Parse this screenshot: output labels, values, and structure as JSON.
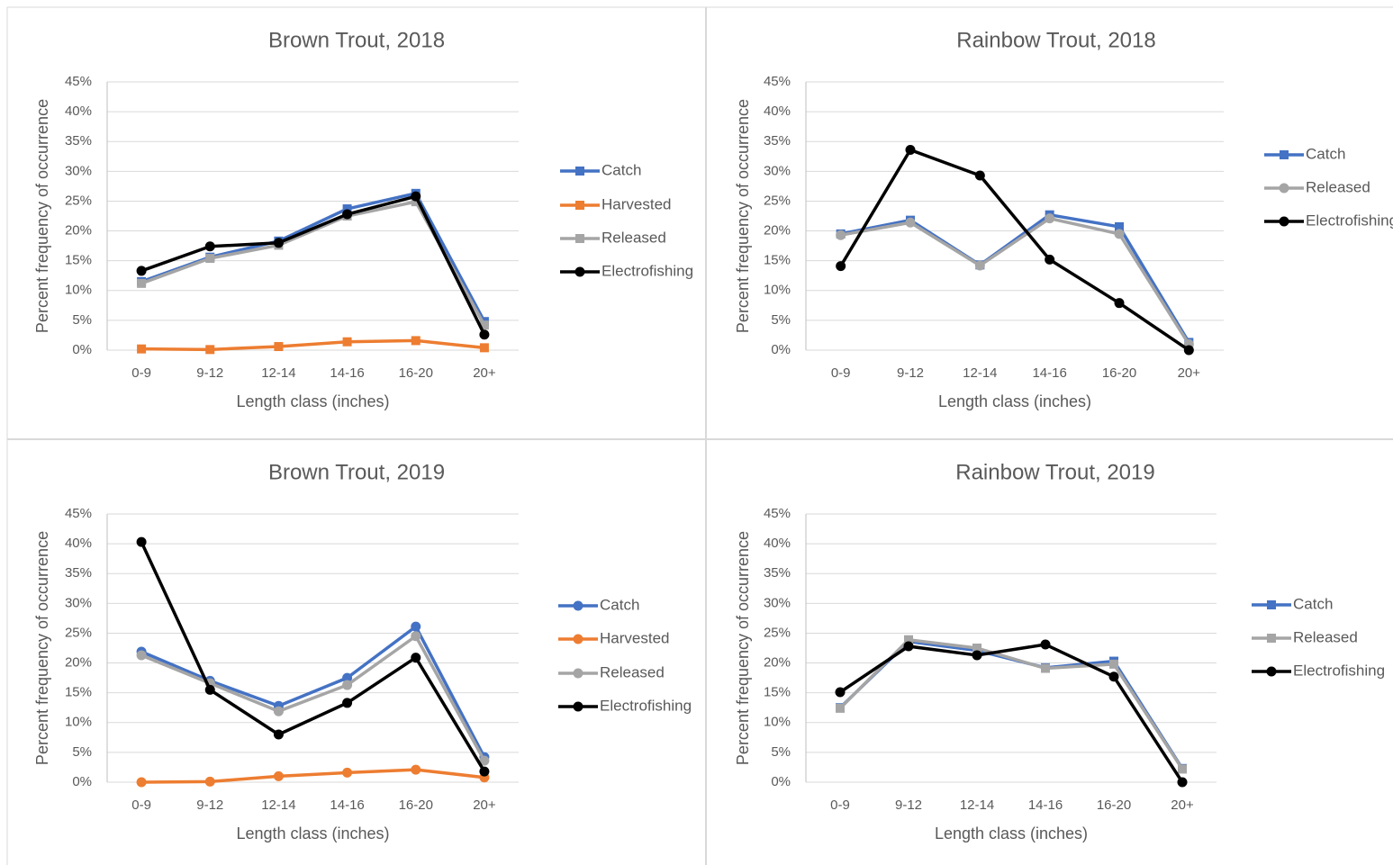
{
  "chart_data": [
    {
      "type": "line",
      "title": "Brown Trout, 2018",
      "xlabel": "Length class (inches)",
      "ylabel": "Percent frequency of occurrence",
      "categories": [
        "0-9",
        "9-12",
        "12-14",
        "14-16",
        "16-20",
        "20+"
      ],
      "series": [
        {
          "name": "Catch",
          "color": "#4472c4",
          "marker": "square",
          "values": [
            11.5,
            15.6,
            18.3,
            23.7,
            26.3,
            4.8
          ]
        },
        {
          "name": "Harvested",
          "color": "#ed7d31",
          "marker": "square",
          "values": [
            0.2,
            0.1,
            0.6,
            1.4,
            1.6,
            0.4
          ]
        },
        {
          "name": "Released",
          "color": "#a5a5a5",
          "marker": "square",
          "values": [
            11.2,
            15.4,
            17.6,
            22.5,
            24.9,
            4.2
          ]
        },
        {
          "name": "Electrofishing",
          "color": "#000000",
          "marker": "circle",
          "values": [
            13.3,
            17.4,
            18.0,
            22.8,
            25.8,
            2.6
          ]
        }
      ],
      "ylim": [
        0,
        45
      ],
      "yticks": [
        {
          "value": 0,
          "label": "0%"
        },
        {
          "value": 5,
          "label": "5%"
        },
        {
          "value": 10,
          "label": "10%"
        },
        {
          "value": 15,
          "label": "15%"
        },
        {
          "value": 20,
          "label": "20%"
        },
        {
          "value": 25,
          "label": "25%"
        },
        {
          "value": 30,
          "label": "30%"
        },
        {
          "value": 35,
          "label": "35%"
        },
        {
          "value": 40,
          "label": "40%"
        },
        {
          "value": 45,
          "label": "45%"
        }
      ],
      "grid": true,
      "legend": "right"
    },
    {
      "type": "line",
      "title": "Rainbow Trout, 2018",
      "xlabel": "Length class (inches)",
      "ylabel": "Percent frequency of occurrence",
      "categories": [
        "0-9",
        "9-12",
        "12-14",
        "14-16",
        "16-20",
        "20+"
      ],
      "series": [
        {
          "name": "Catch",
          "color": "#4472c4",
          "marker": "square",
          "values": [
            19.5,
            21.8,
            14.3,
            22.7,
            20.7,
            1.3
          ]
        },
        {
          "name": "Released",
          "color": "#a5a5a5",
          "marker": "circle",
          "values": [
            19.3,
            21.4,
            14.2,
            22.1,
            19.5,
            1.0
          ]
        },
        {
          "name": "Electrofishing",
          "color": "#000000",
          "marker": "circle",
          "values": [
            14.1,
            33.6,
            29.3,
            15.2,
            7.9,
            0.0
          ]
        }
      ],
      "ylim": [
        0,
        45
      ],
      "yticks": [
        {
          "value": 0,
          "label": "0%"
        },
        {
          "value": 5,
          "label": "5%"
        },
        {
          "value": 10,
          "label": "10%"
        },
        {
          "value": 15,
          "label": "15%"
        },
        {
          "value": 20,
          "label": "20%"
        },
        {
          "value": 25,
          "label": "25%"
        },
        {
          "value": 30,
          "label": "30%"
        },
        {
          "value": 35,
          "label": "35%"
        },
        {
          "value": 40,
          "label": "40%"
        },
        {
          "value": 45,
          "label": "45%"
        }
      ],
      "grid": true,
      "legend": "right"
    },
    {
      "type": "line",
      "title": "Brown Trout, 2019",
      "xlabel": "Length class (inches)",
      "ylabel": "Percent frequency of occurrence",
      "categories": [
        "0-9",
        "9-12",
        "12-14",
        "14-16",
        "16-20",
        "20+"
      ],
      "series": [
        {
          "name": "Catch",
          "color": "#4472c4",
          "marker": "circle",
          "values": [
            21.9,
            17.0,
            12.8,
            17.5,
            26.1,
            4.2
          ]
        },
        {
          "name": "Harvested",
          "color": "#ed7d31",
          "marker": "circle",
          "values": [
            0.0,
            0.1,
            1.0,
            1.6,
            2.1,
            0.8
          ]
        },
        {
          "name": "Released",
          "color": "#a5a5a5",
          "marker": "circle",
          "values": [
            21.3,
            16.6,
            11.9,
            16.3,
            24.5,
            3.6
          ]
        },
        {
          "name": "Electrofishing",
          "color": "#000000",
          "marker": "circle",
          "values": [
            40.3,
            15.5,
            8.0,
            13.3,
            20.9,
            1.8
          ]
        }
      ],
      "ylim": [
        0,
        45
      ],
      "yticks": [
        {
          "value": 0,
          "label": "0%"
        },
        {
          "value": 5,
          "label": "5%"
        },
        {
          "value": 10,
          "label": "10%"
        },
        {
          "value": 15,
          "label": "15%"
        },
        {
          "value": 20,
          "label": "20%"
        },
        {
          "value": 25,
          "label": "25%"
        },
        {
          "value": 30,
          "label": "30%"
        },
        {
          "value": 35,
          "label": "35%"
        },
        {
          "value": 40,
          "label": "40%"
        },
        {
          "value": 45,
          "label": "45%"
        }
      ],
      "grid": true,
      "legend": "right"
    },
    {
      "type": "line",
      "title": "Rainbow Trout, 2019",
      "xlabel": "Length class (inches)",
      "ylabel": "Percent frequency of occurrence",
      "categories": [
        "0-9",
        "9-12",
        "12-14",
        "14-16",
        "16-20",
        "20+"
      ],
      "series": [
        {
          "name": "Catch",
          "color": "#4472c4",
          "marker": "square",
          "values": [
            12.5,
            23.6,
            22.1,
            19.2,
            20.3,
            2.3
          ]
        },
        {
          "name": "Released",
          "color": "#a5a5a5",
          "marker": "square",
          "values": [
            12.4,
            23.9,
            22.5,
            19.1,
            19.8,
            2.2
          ]
        },
        {
          "name": "Electrofishing",
          "color": "#000000",
          "marker": "circle",
          "values": [
            15.1,
            22.8,
            21.3,
            23.1,
            17.7,
            0.0
          ]
        }
      ],
      "ylim": [
        0,
        45
      ],
      "yticks": [
        {
          "value": 0,
          "label": "0%"
        },
        {
          "value": 5,
          "label": "5%"
        },
        {
          "value": 10,
          "label": "10%"
        },
        {
          "value": 15,
          "label": "15%"
        },
        {
          "value": 20,
          "label": "20%"
        },
        {
          "value": 25,
          "label": "25%"
        },
        {
          "value": 30,
          "label": "30%"
        },
        {
          "value": 35,
          "label": "35%"
        },
        {
          "value": 40,
          "label": "40%"
        },
        {
          "value": 45,
          "label": "45%"
        }
      ],
      "grid": true,
      "legend": "right"
    }
  ]
}
